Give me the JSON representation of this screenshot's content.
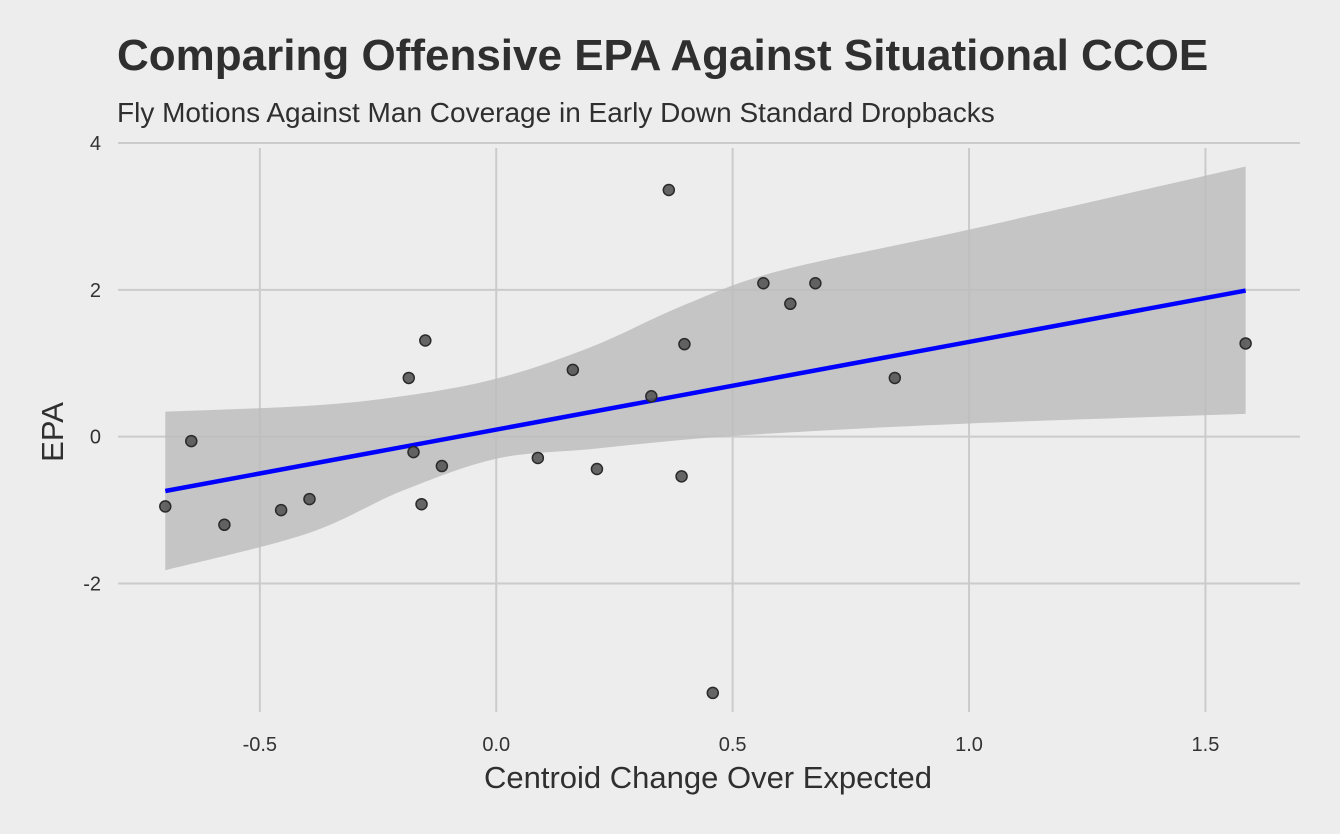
{
  "chart_data": {
    "type": "scatter",
    "title": "Comparing Offensive EPA Against Situational CCOE",
    "subtitle": "Fly Motions Against Man Coverage in Early Down Standard Dropbacks",
    "xlabel": "Centroid Change Over Expected",
    "ylabel": "EPA",
    "xlim": [
      -0.8,
      1.7
    ],
    "ylim": [
      -3.75,
      4.15
    ],
    "x_ticks": [
      -0.5,
      0.0,
      0.5,
      1.0,
      1.5
    ],
    "x_tick_labels": [
      "-0.5",
      "0.0",
      "0.5",
      "1.0",
      "1.5"
    ],
    "y_ticks": [
      -2,
      0,
      2,
      4
    ],
    "y_tick_labels": [
      "-2",
      "0",
      "2",
      "4"
    ],
    "grid": true,
    "legend": "none",
    "points": [
      {
        "x": -0.7,
        "y": -0.95
      },
      {
        "x": -0.645,
        "y": -0.06
      },
      {
        "x": -0.575,
        "y": -1.2
      },
      {
        "x": -0.455,
        "y": -1.0
      },
      {
        "x": -0.395,
        "y": -0.85
      },
      {
        "x": -0.185,
        "y": 0.8
      },
      {
        "x": -0.175,
        "y": -0.21
      },
      {
        "x": -0.158,
        "y": -0.92
      },
      {
        "x": -0.15,
        "y": 1.31
      },
      {
        "x": -0.115,
        "y": -0.4
      },
      {
        "x": 0.088,
        "y": -0.29
      },
      {
        "x": 0.162,
        "y": 0.91
      },
      {
        "x": 0.213,
        "y": -0.44
      },
      {
        "x": 0.328,
        "y": 0.55
      },
      {
        "x": 0.365,
        "y": 3.36
      },
      {
        "x": 0.392,
        "y": -0.54
      },
      {
        "x": 0.398,
        "y": 1.26
      },
      {
        "x": 0.458,
        "y": -3.49
      },
      {
        "x": 0.565,
        "y": 2.09
      },
      {
        "x": 0.622,
        "y": 1.81
      },
      {
        "x": 0.675,
        "y": 2.09
      },
      {
        "x": 0.843,
        "y": 0.8
      },
      {
        "x": 1.585,
        "y": 1.27
      }
    ],
    "regression": {
      "type": "linear",
      "x_range": [
        -0.7,
        1.585
      ],
      "y_start": -0.74,
      "y_end": 1.99,
      "band_upper": [
        {
          "x": -0.7,
          "y": 0.34
        },
        {
          "x": -0.4,
          "y": 0.42
        },
        {
          "x": -0.2,
          "y": 0.55
        },
        {
          "x": 0.0,
          "y": 0.79
        },
        {
          "x": 0.2,
          "y": 1.22
        },
        {
          "x": 0.4,
          "y": 1.8
        },
        {
          "x": 0.6,
          "y": 2.26
        },
        {
          "x": 1.0,
          "y": 2.82
        },
        {
          "x": 1.585,
          "y": 3.68
        }
      ],
      "band_lower": [
        {
          "x": -0.7,
          "y": -1.82
        },
        {
          "x": -0.4,
          "y": -1.32
        },
        {
          "x": -0.2,
          "y": -0.74
        },
        {
          "x": 0.0,
          "y": -0.3
        },
        {
          "x": 0.2,
          "y": -0.17
        },
        {
          "x": 0.4,
          "y": -0.04
        },
        {
          "x": 0.6,
          "y": 0.05
        },
        {
          "x": 1.0,
          "y": 0.18
        },
        {
          "x": 1.585,
          "y": 0.31
        }
      ]
    },
    "colors": {
      "background": "#ededed",
      "grid": "#cbcbcb",
      "point_fill": "#555555",
      "point_stroke": "#2a2a2a",
      "line": "#0000ff",
      "band": "#bdbdbd"
    }
  }
}
